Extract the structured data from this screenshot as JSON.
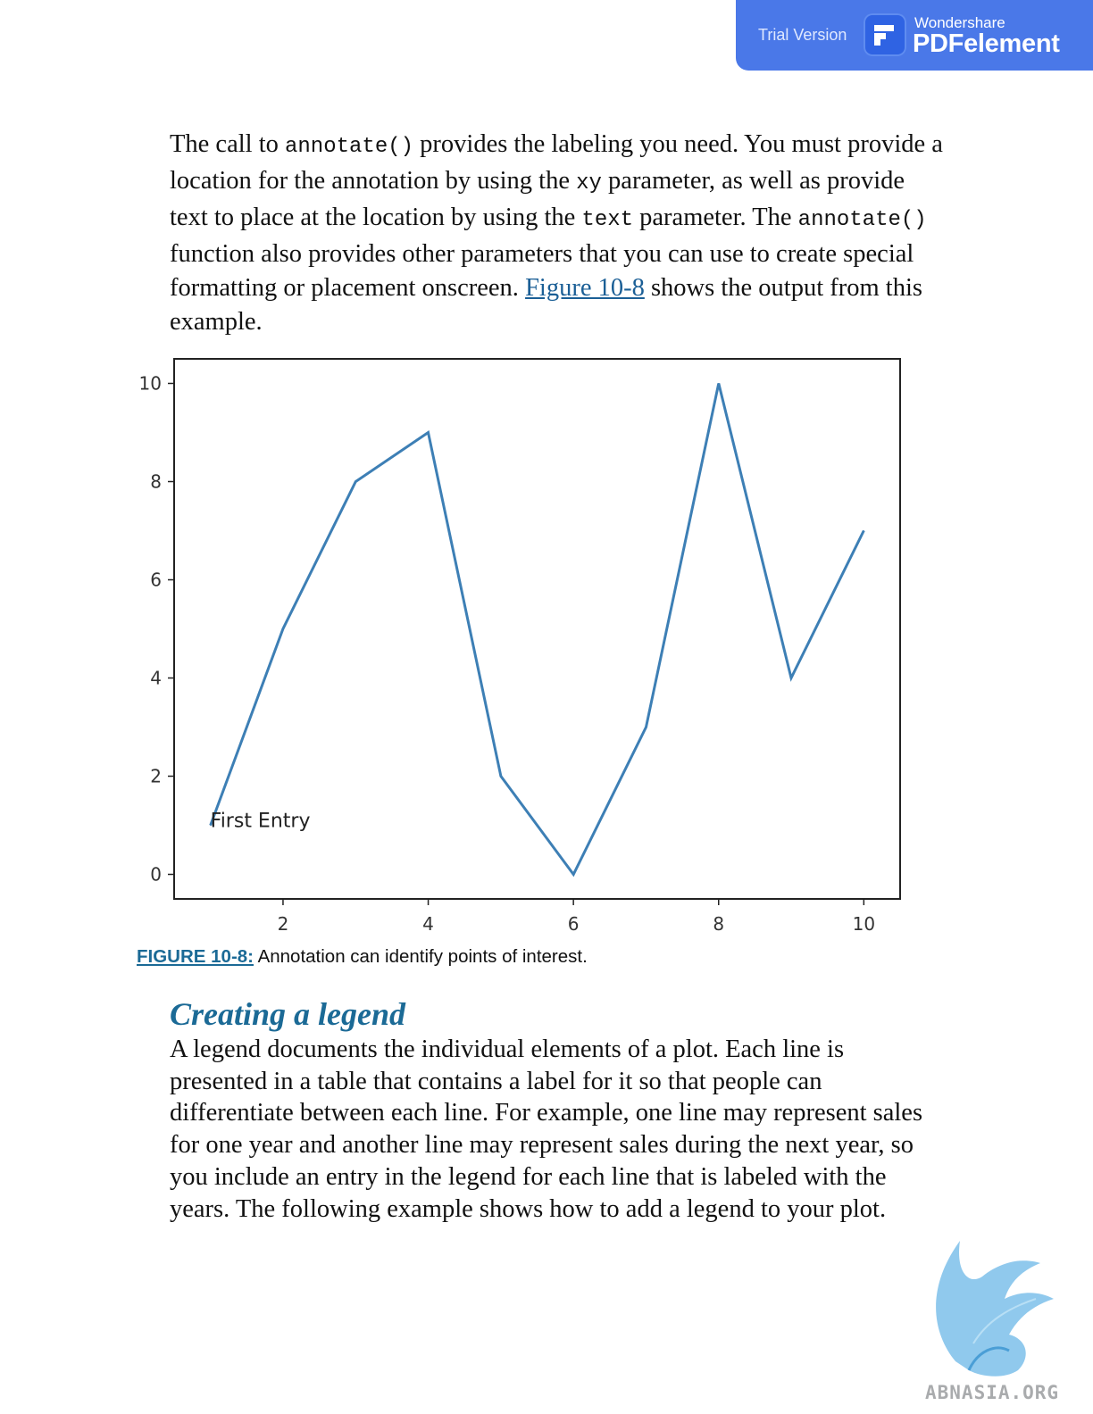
{
  "banner": {
    "trial_label": "Trial Version",
    "brand_top": "Wondershare",
    "brand_name": "PDFelement"
  },
  "paragraph1": {
    "t1": "The call to ",
    "c1": "annotate()",
    "t2": " provides the labeling you need. You must provide a location for the annotation by using the ",
    "c2": "xy",
    "t3": " parameter, as well as provide text to place at the location by using the ",
    "c3": "text",
    "t4": " parameter. The ",
    "c4": "annotate()",
    "t5": " function also provides other parameters that you can use to create special formatting or placement onscreen. ",
    "link": "Figure 10-8",
    "t6": " shows the output from this example."
  },
  "chart_data": {
    "type": "line",
    "x": [
      1,
      2,
      3,
      4,
      5,
      6,
      7,
      8,
      9,
      10
    ],
    "values": [
      1,
      5,
      8,
      9,
      2,
      0,
      3,
      10,
      4,
      7
    ],
    "xlim": [
      0.5,
      10.5
    ],
    "ylim": [
      -0.5,
      10.5
    ],
    "x_ticks": [
      "2",
      "4",
      "6",
      "8",
      "10"
    ],
    "y_ticks": [
      "0",
      "2",
      "4",
      "6",
      "8",
      "10"
    ],
    "annotation": {
      "text": "First Entry",
      "x": 1,
      "y": 1
    },
    "line_color": "#3d7fb5",
    "grid": false
  },
  "caption": {
    "label": "FIGURE 10-8:",
    "text": " Annotation can identify points of interest."
  },
  "section_title": "Creating a legend",
  "paragraph2": "A legend documents the individual elements of a plot. Each line is presented in a table that contains a label for it so that people can differentiate between each line. For example, one line may represent sales for one year and another line may represent sales during the next year, so you include an entry in the legend for each line that is labeled with the years. The following example shows how to add a legend to your plot.",
  "watermark": {
    "text": "ABNASIA.ORG",
    "icon": "griffin-logo-icon",
    "color": "#6fb6e6"
  }
}
